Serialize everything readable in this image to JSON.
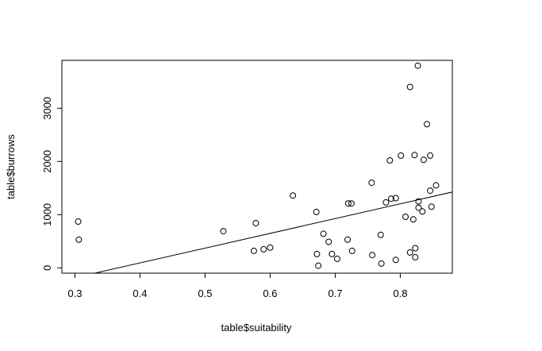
{
  "chart_data": {
    "type": "scatter",
    "title": "",
    "xlabel": "table$suitability",
    "ylabel": "table$burrows",
    "xlim": [
      0.28,
      0.88
    ],
    "ylim": [
      -100,
      3900
    ],
    "xticks": [
      0.3,
      0.4,
      0.5,
      0.6,
      0.7,
      0.8
    ],
    "xtick_labels": [
      "0.3",
      "0.4",
      "0.5",
      "0.6",
      "0.7",
      "0.8"
    ],
    "yticks": [
      0,
      1000,
      2000,
      3000
    ],
    "ytick_labels": [
      "0",
      "1000",
      "2000",
      "3000"
    ],
    "grid": false,
    "marker": "open-circle",
    "points": [
      {
        "x": 0.305,
        "y": 870
      },
      {
        "x": 0.306,
        "y": 530
      },
      {
        "x": 0.528,
        "y": 690
      },
      {
        "x": 0.575,
        "y": 320
      },
      {
        "x": 0.578,
        "y": 840
      },
      {
        "x": 0.59,
        "y": 350
      },
      {
        "x": 0.6,
        "y": 380
      },
      {
        "x": 0.635,
        "y": 1360
      },
      {
        "x": 0.671,
        "y": 1050
      },
      {
        "x": 0.672,
        "y": 260
      },
      {
        "x": 0.674,
        "y": 40
      },
      {
        "x": 0.682,
        "y": 640
      },
      {
        "x": 0.69,
        "y": 490
      },
      {
        "x": 0.695,
        "y": 260
      },
      {
        "x": 0.703,
        "y": 170
      },
      {
        "x": 0.719,
        "y": 530
      },
      {
        "x": 0.72,
        "y": 1210
      },
      {
        "x": 0.725,
        "y": 1210
      },
      {
        "x": 0.726,
        "y": 320
      },
      {
        "x": 0.756,
        "y": 1600
      },
      {
        "x": 0.757,
        "y": 240
      },
      {
        "x": 0.77,
        "y": 620
      },
      {
        "x": 0.771,
        "y": 80
      },
      {
        "x": 0.778,
        "y": 1230
      },
      {
        "x": 0.784,
        "y": 2020
      },
      {
        "x": 0.786,
        "y": 1300
      },
      {
        "x": 0.793,
        "y": 1310
      },
      {
        "x": 0.793,
        "y": 150
      },
      {
        "x": 0.801,
        "y": 2110
      },
      {
        "x": 0.808,
        "y": 960
      },
      {
        "x": 0.815,
        "y": 3400
      },
      {
        "x": 0.815,
        "y": 290
      },
      {
        "x": 0.82,
        "y": 910
      },
      {
        "x": 0.822,
        "y": 2120
      },
      {
        "x": 0.823,
        "y": 370
      },
      {
        "x": 0.823,
        "y": 200
      },
      {
        "x": 0.827,
        "y": 3800
      },
      {
        "x": 0.828,
        "y": 1250
      },
      {
        "x": 0.828,
        "y": 1130
      },
      {
        "x": 0.834,
        "y": 1060
      },
      {
        "x": 0.836,
        "y": 2030
      },
      {
        "x": 0.841,
        "y": 2700
      },
      {
        "x": 0.846,
        "y": 2110
      },
      {
        "x": 0.846,
        "y": 1450
      },
      {
        "x": 0.848,
        "y": 1150
      },
      {
        "x": 0.855,
        "y": 1550
      }
    ],
    "regression_line": {
      "intercept": -1018,
      "slope": 2777
    }
  }
}
